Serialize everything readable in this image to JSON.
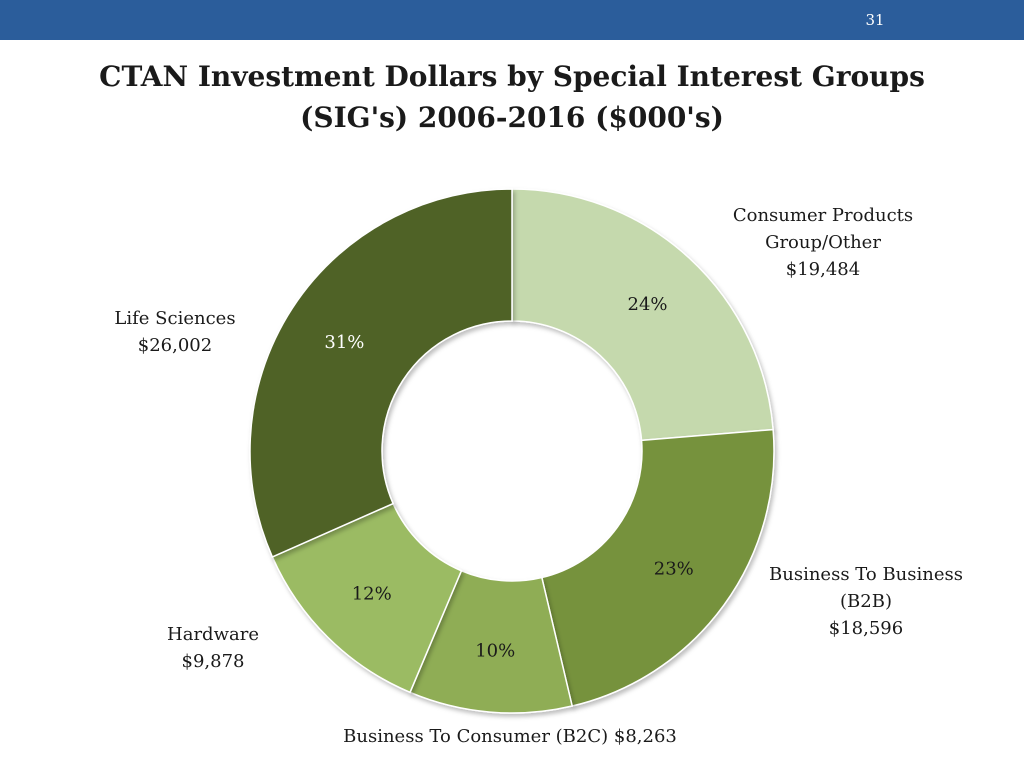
{
  "slide": {
    "page_number": "31",
    "header_color": "#2b5d9b"
  },
  "chart_data": {
    "type": "pie",
    "variant": "donut",
    "title": "CTAN Investment Dollars by Special Interest Groups (SIG's) 2006-2016 ($000's)",
    "title_lines": [
      "CTAN Investment Dollars by Special Interest Groups",
      "(SIG's) 2006-2016 ($000's)"
    ],
    "units": "$000's",
    "slices": [
      {
        "name": "Consumer Products Group/Other",
        "label_lines": [
          "Consumer Products",
          "Group/Other"
        ],
        "value": 19484,
        "value_label": "$19,484",
        "percent_label": "24%",
        "color": "#c5d9ad"
      },
      {
        "name": "Business To Business (B2B)",
        "label_lines": [
          "Business To Business",
          "(B2B)"
        ],
        "value": 18596,
        "value_label": "$18,596",
        "percent_label": "23%",
        "color": "#76923c"
      },
      {
        "name": "Business To Consumer (B2C)",
        "label_lines": [
          "Business To Consumer (B2C) $8,263"
        ],
        "value": 8263,
        "value_label": "",
        "percent_label": "10%",
        "color": "#8fad54"
      },
      {
        "name": "Hardware",
        "label_lines": [
          "Hardware"
        ],
        "value": 9878,
        "value_label": "$9,878",
        "percent_label": "12%",
        "color": "#9bbb63"
      },
      {
        "name": "Life Sciences",
        "label_lines": [
          "Life Sciences"
        ],
        "value": 26002,
        "value_label": "$26,002",
        "percent_label": "31%",
        "color": "#4f6228"
      }
    ],
    "legend": "none"
  }
}
